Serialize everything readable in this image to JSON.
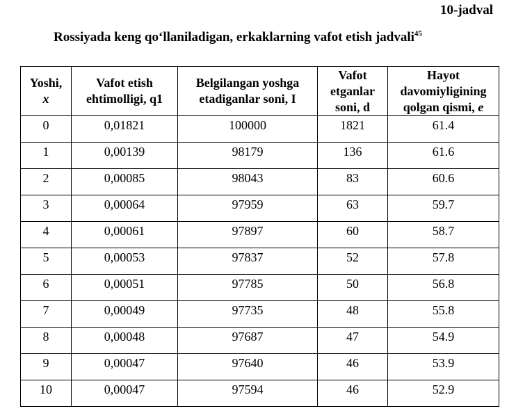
{
  "table_number": "10-jadval",
  "title": {
    "text": "Rossiyada keng qo‘llaniladigan, erkaklarning vafot etish jadvali",
    "footnote": "45"
  },
  "table": {
    "headers": [
      {
        "line1": "Yoshi,",
        "line2": "",
        "symbol": "x"
      },
      {
        "line1": "Vafot etish",
        "line2": "ehtimolligi, q1",
        "symbol": ""
      },
      {
        "line1": "Belgilangan yoshga",
        "line2": "etadiganlar soni, I",
        "symbol": ""
      },
      {
        "line1": "Vafot",
        "line2": "etganlar",
        "line3": "soni, d",
        "symbol": ""
      },
      {
        "line1": "Hayot",
        "line2": "davomiyligining",
        "line3": "qolgan qismi, ",
        "symbol": "e"
      }
    ],
    "rows": [
      {
        "age": "0",
        "q": "0,01821",
        "l": "100000",
        "d": "1821",
        "e": "61.4"
      },
      {
        "age": "1",
        "q": "0,00139",
        "l": "98179",
        "d": "136",
        "e": "61.6"
      },
      {
        "age": "2",
        "q": "0,00085",
        "l": "98043",
        "d": "83",
        "e": "60.6"
      },
      {
        "age": "3",
        "q": "0,00064",
        "l": "97959",
        "d": "63",
        "e": "59.7"
      },
      {
        "age": "4",
        "q": "0,00061",
        "l": "97897",
        "d": "60",
        "e": "58.7"
      },
      {
        "age": "5",
        "q": "0,00053",
        "l": "97837",
        "d": "52",
        "e": "57.8"
      },
      {
        "age": "6",
        "q": "0,00051",
        "l": "97785",
        "d": "50",
        "e": "56.8"
      },
      {
        "age": "7",
        "q": "0,00049",
        "l": "97735",
        "d": "48",
        "e": "55.8"
      },
      {
        "age": "8",
        "q": "0,00048",
        "l": "97687",
        "d": "47",
        "e": "54.9"
      },
      {
        "age": "9",
        "q": "0,00047",
        "l": "97640",
        "d": "46",
        "e": "53.9"
      },
      {
        "age": "10",
        "q": "0,00047",
        "l": "97594",
        "d": "46",
        "e": "52.9"
      }
    ]
  }
}
